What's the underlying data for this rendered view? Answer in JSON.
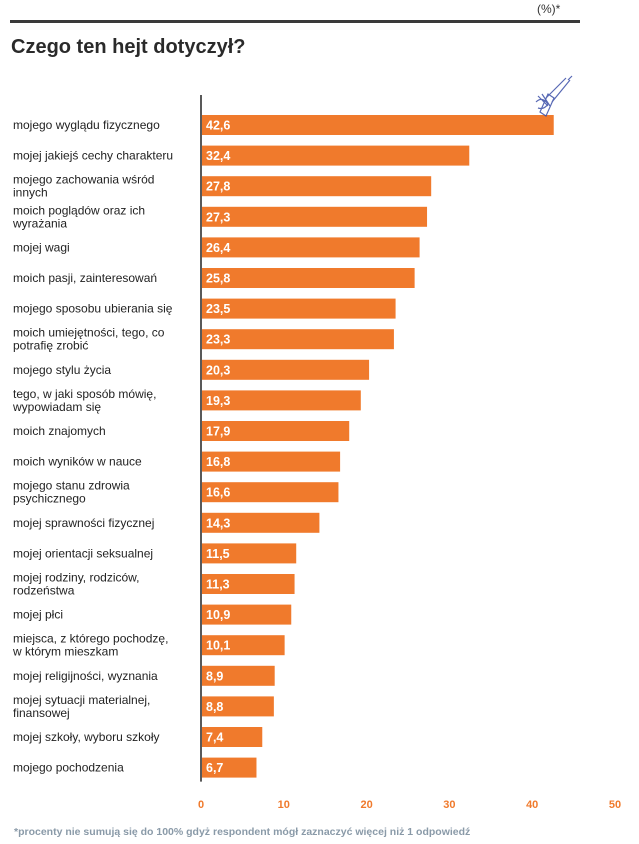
{
  "header": {
    "unit": "(%)*",
    "title": "Czego ten hejt dotyczył?"
  },
  "footnote": "*procenty nie sumują się do 100% gdyż respondent mógł zaznaczyć więcej niż 1 odpowiedź",
  "colors": {
    "bar": "#f07a2c",
    "axis": "#222222",
    "tick": "#f07a2c"
  },
  "chart_data": {
    "type": "bar",
    "orientation": "horizontal",
    "title": "Czego ten hejt dotyczył?",
    "xlim": [
      0,
      50
    ],
    "xticks": [
      0,
      10,
      20,
      30,
      40,
      50
    ],
    "categories": [
      [
        "mojego wyglądu fizycznego"
      ],
      [
        "mojej jakiejś cechy charakteru"
      ],
      [
        "mojego zachowania wśród",
        "innych"
      ],
      [
        "moich poglądów oraz ich",
        "wyrażania"
      ],
      [
        "mojej wagi"
      ],
      [
        "moich pasji, zainteresowań"
      ],
      [
        "mojego sposobu ubierania się"
      ],
      [
        "moich umiejętności, tego, co",
        "potrafię zrobić"
      ],
      [
        "mojego stylu życia"
      ],
      [
        "tego, w jaki sposób mówię,",
        "wypowiadam się"
      ],
      [
        "moich znajomych"
      ],
      [
        "moich wyników w nauce"
      ],
      [
        "mojego stanu zdrowia",
        "psychicznego"
      ],
      [
        "mojej sprawności fizycznej"
      ],
      [
        "mojej orientacji seksualnej"
      ],
      [
        "mojej rodziny, rodziców,",
        "rodzeństwa"
      ],
      [
        "mojej płci"
      ],
      [
        "miejsca, z którego pochodzę,",
        "w którym mieszkam"
      ],
      [
        "mojej religijności, wyznania"
      ],
      [
        "mojej sytuacji materialnej,",
        "finansowej"
      ],
      [
        "mojej szkoły, wyboru szkoły"
      ],
      [
        "mojego pochodzenia"
      ]
    ],
    "values": [
      42.6,
      32.4,
      27.8,
      27.3,
      26.4,
      25.8,
      23.5,
      23.3,
      20.3,
      19.3,
      17.9,
      16.8,
      16.6,
      14.3,
      11.5,
      11.3,
      10.9,
      10.1,
      8.9,
      8.8,
      7.4,
      6.7
    ],
    "value_labels": [
      "42,6",
      "32,4",
      "27,8",
      "27,3",
      "26,4",
      "25,8",
      "23,5",
      "23,3",
      "20,3",
      "19,3",
      "17,9",
      "16,8",
      "16,6",
      "14,3",
      "11,5",
      "11,3",
      "10,9",
      "10,1",
      "8,9",
      "8,8",
      "7,4",
      "6,7"
    ],
    "tick_labels": [
      "0",
      "10",
      "20",
      "30",
      "40",
      "50"
    ],
    "grid": false
  }
}
